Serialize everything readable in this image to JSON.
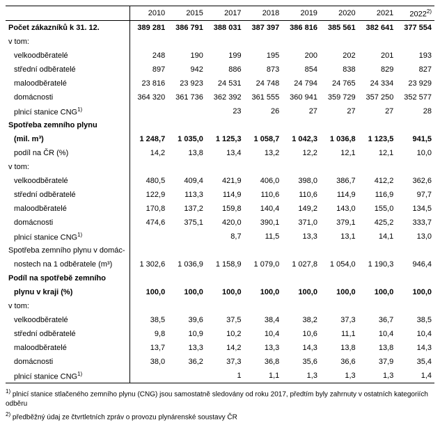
{
  "years": [
    "2010",
    "2015",
    "2017",
    "2018",
    "2019",
    "2020",
    "2021",
    "2022"
  ],
  "lastYearSup": "2)",
  "rows": [
    {
      "label": "Počet zákazníků k 31. 12.",
      "bold": true,
      "vals": [
        "389 281",
        "386 791",
        "388 031",
        "387 397",
        "386 816",
        "385 561",
        "382 641",
        "377 554"
      ]
    },
    {
      "label": "v tom:",
      "left": true,
      "vals": [
        "",
        "",
        "",
        "",
        "",
        "",
        "",
        ""
      ]
    },
    {
      "label": "velkoodběratelé",
      "indent": 1,
      "vals": [
        "248",
        "190",
        "199",
        "195",
        "200",
        "202",
        "201",
        "193"
      ]
    },
    {
      "label": "střední odběratelé",
      "indent": 1,
      "vals": [
        "897",
        "942",
        "886",
        "873",
        "854",
        "838",
        "829",
        "827"
      ]
    },
    {
      "label": "maloodběratelé",
      "indent": 1,
      "vals": [
        "23 816",
        "23 923",
        "24 531",
        "24 748",
        "24 794",
        "24 765",
        "24 334",
        "23 929"
      ]
    },
    {
      "label": "domácnosti",
      "indent": 1,
      "vals": [
        "364 320",
        "361 736",
        "362 392",
        "361 555",
        "360 941",
        "359 729",
        "357 250",
        "352 577"
      ]
    },
    {
      "label": "plnicí stanice CNG",
      "sup": "1)",
      "indent": 1,
      "vals": [
        "",
        "",
        "23",
        "26",
        "27",
        "27",
        "27",
        "28"
      ]
    },
    {
      "label": "Spotřeba zemního plynu",
      "bold": true,
      "vals": [
        "",
        "",
        "",
        "",
        "",
        "",
        "",
        ""
      ],
      "noheight": false
    },
    {
      "label": "(mil. m³)",
      "bold": true,
      "contprev": true,
      "vals": [
        "1 248,7",
        "1 035,0",
        "1 125,3",
        "1 058,7",
        "1 042,3",
        "1 036,8",
        "1 123,5",
        "941,5"
      ]
    },
    {
      "label": "podíl na ČR (%)",
      "indent": 1,
      "vals": [
        "14,2",
        "13,8",
        "13,4",
        "13,2",
        "12,2",
        "12,1",
        "12,1",
        "10,0"
      ]
    },
    {
      "label": "v tom:",
      "left": true,
      "vals": [
        "",
        "",
        "",
        "",
        "",
        "",
        "",
        ""
      ]
    },
    {
      "label": "velkoodběratelé",
      "indent": 1,
      "vals": [
        "480,5",
        "409,4",
        "421,9",
        "406,0",
        "398,0",
        "386,7",
        "412,2",
        "362,6"
      ]
    },
    {
      "label": "střední odběratelé",
      "indent": 1,
      "vals": [
        "122,9",
        "113,3",
        "114,9",
        "110,6",
        "110,6",
        "114,9",
        "116,9",
        "97,7"
      ]
    },
    {
      "label": "maloodběratelé",
      "indent": 1,
      "vals": [
        "170,8",
        "137,2",
        "159,8",
        "140,4",
        "149,2",
        "143,0",
        "155,0",
        "134,5"
      ]
    },
    {
      "label": "domácnosti",
      "indent": 1,
      "vals": [
        "474,6",
        "375,1",
        "420,0",
        "390,1",
        "371,0",
        "379,1",
        "425,2",
        "333,7"
      ]
    },
    {
      "label": "plnicí stanice CNG",
      "sup": "1)",
      "indent": 1,
      "vals": [
        "",
        "",
        "8,7",
        "11,5",
        "13,3",
        "13,1",
        "14,1",
        "13,0"
      ]
    },
    {
      "label": "Spotřeba zemního plynu v domác-",
      "vals": [
        "",
        "",
        "",
        "",
        "",
        "",
        "",
        ""
      ]
    },
    {
      "label": "nostech na 1 odběratele (m³)",
      "indent": 1,
      "contprev": true,
      "vals": [
        "1 302,6",
        "1 036,9",
        "1 158,9",
        "1 079,0",
        "1 027,8",
        "1 054,0",
        "1 190,3",
        "946,4"
      ]
    },
    {
      "label": "Podíl na spotřebě zemního",
      "bold": true,
      "vals": [
        "",
        "",
        "",
        "",
        "",
        "",
        "",
        ""
      ]
    },
    {
      "label": "plynu v kraji (%)",
      "bold": true,
      "contprev": true,
      "vals": [
        "100,0",
        "100,0",
        "100,0",
        "100,0",
        "100,0",
        "100,0",
        "100,0",
        "100,0"
      ]
    },
    {
      "label": "v tom:",
      "left": true,
      "vals": [
        "",
        "",
        "",
        "",
        "",
        "",
        "",
        ""
      ]
    },
    {
      "label": "velkoodběratelé",
      "indent": 1,
      "vals": [
        "38,5",
        "39,6",
        "37,5",
        "38,4",
        "38,2",
        "37,3",
        "36,7",
        "38,5"
      ]
    },
    {
      "label": "střední odběratelé",
      "indent": 1,
      "vals": [
        "9,8",
        "10,9",
        "10,2",
        "10,4",
        "10,6",
        "11,1",
        "10,4",
        "10,4"
      ]
    },
    {
      "label": "maloodběratelé",
      "indent": 1,
      "vals": [
        "13,7",
        "13,3",
        "14,2",
        "13,3",
        "14,3",
        "13,8",
        "13,8",
        "14,3"
      ]
    },
    {
      "label": "domácnosti",
      "indent": 1,
      "vals": [
        "38,0",
        "36,2",
        "37,3",
        "36,8",
        "35,6",
        "36,6",
        "37,9",
        "35,4"
      ]
    },
    {
      "label": "plnicí stanice CNG",
      "sup": "1)",
      "indent": 1,
      "last": true,
      "vals": [
        "",
        "",
        "1",
        "1,1",
        "1,3",
        "1,3",
        "1,3",
        "1,4"
      ]
    }
  ],
  "footnotes": [
    {
      "sup": "1)",
      "text": "plnicí stanice stlačeného zemního plynu (CNG) jsou samostatně sledovány od roku 2017, předtím byly zahrnuty v ostatních kategoriích odběru"
    },
    {
      "sup": "2)",
      "text": "předběžný údaj ze čtvrtletních zpráv o provozu plynárenské soustavy ČR"
    }
  ]
}
